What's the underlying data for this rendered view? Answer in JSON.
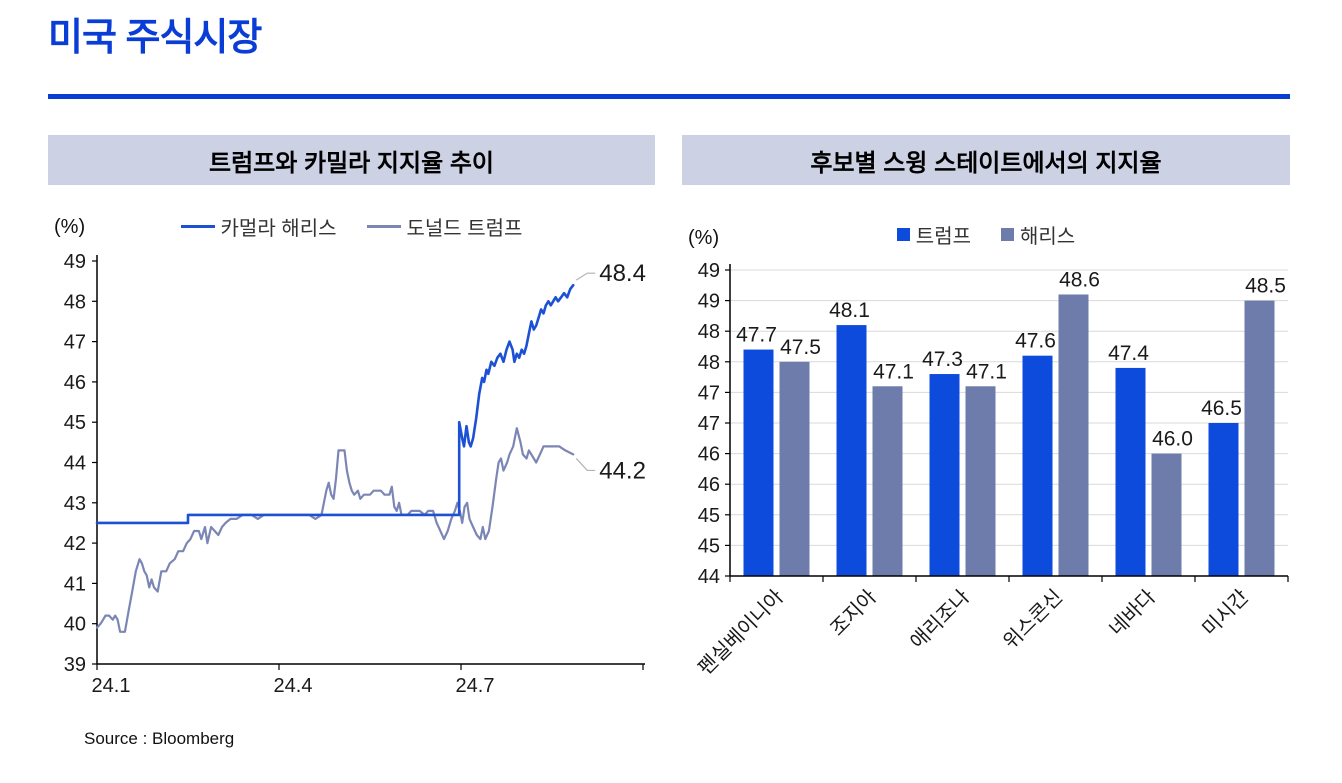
{
  "page": {
    "title": "미국 주식시장",
    "source": "Source : Bloomberg"
  },
  "colors": {
    "accent": "#0a3dd6",
    "header_bg": "#ccd1e4",
    "grid": "#d9d9d9",
    "axis": "#000000",
    "leader": "#b3b3b3",
    "label_text": "#1a1a1a"
  },
  "left_panel": {
    "header": "트럼프와 카밀라 지지율 추이",
    "unit_label": "(%)"
  },
  "right_panel": {
    "header": "후보별 스윙 스테이트에서의 지지율",
    "unit_label": "(%)"
  },
  "chart_data": [
    {
      "type": "line",
      "title": "트럼프와 카밀라 지지율 추이",
      "ylabel": "(%)",
      "ylim": [
        39,
        49
      ],
      "ytick_step": 1,
      "xticks": [
        "24.1",
        "24.4",
        "24.7"
      ],
      "x_divisions": 9,
      "grid": false,
      "legend_position": "top",
      "series": [
        {
          "name": "도널드 트럼프",
          "color": "#7b86b5",
          "end_label": "44.2",
          "points": [
            [
              0,
              39.9
            ],
            [
              0.06,
              40.0
            ],
            [
              0.1,
              40.1
            ],
            [
              0.14,
              40.2
            ],
            [
              0.2,
              40.2
            ],
            [
              0.26,
              40.1
            ],
            [
              0.3,
              40.2
            ],
            [
              0.34,
              40.1
            ],
            [
              0.38,
              39.8
            ],
            [
              0.46,
              39.8
            ],
            [
              0.52,
              40.3
            ],
            [
              0.58,
              40.8
            ],
            [
              0.64,
              41.3
            ],
            [
              0.7,
              41.6
            ],
            [
              0.74,
              41.5
            ],
            [
              0.78,
              41.3
            ],
            [
              0.82,
              41.2
            ],
            [
              0.86,
              40.9
            ],
            [
              0.9,
              41.1
            ],
            [
              0.94,
              40.9
            ],
            [
              1.0,
              40.8
            ],
            [
              1.06,
              41.3
            ],
            [
              1.14,
              41.3
            ],
            [
              1.2,
              41.5
            ],
            [
              1.28,
              41.6
            ],
            [
              1.34,
              41.8
            ],
            [
              1.42,
              41.8
            ],
            [
              1.48,
              42.0
            ],
            [
              1.54,
              42.1
            ],
            [
              1.6,
              42.3
            ],
            [
              1.68,
              42.3
            ],
            [
              1.72,
              42.1
            ],
            [
              1.78,
              42.4
            ],
            [
              1.82,
              42.0
            ],
            [
              1.88,
              42.4
            ],
            [
              1.94,
              42.3
            ],
            [
              2.0,
              42.2
            ],
            [
              2.06,
              42.4
            ],
            [
              2.12,
              42.5
            ],
            [
              2.2,
              42.6
            ],
            [
              2.3,
              42.6
            ],
            [
              2.4,
              42.7
            ],
            [
              2.55,
              42.7
            ],
            [
              2.65,
              42.6
            ],
            [
              2.75,
              42.7
            ],
            [
              3.5,
              42.7
            ],
            [
              3.6,
              42.6
            ],
            [
              3.7,
              42.7
            ],
            [
              3.78,
              43.3
            ],
            [
              3.82,
              43.5
            ],
            [
              3.86,
              43.2
            ],
            [
              3.9,
              43.1
            ],
            [
              3.94,
              43.6
            ],
            [
              3.98,
              44.3
            ],
            [
              4.08,
              44.3
            ],
            [
              4.12,
              43.8
            ],
            [
              4.16,
              43.5
            ],
            [
              4.2,
              43.3
            ],
            [
              4.24,
              43.2
            ],
            [
              4.3,
              43.3
            ],
            [
              4.34,
              43.1
            ],
            [
              4.4,
              43.2
            ],
            [
              4.5,
              43.2
            ],
            [
              4.56,
              43.3
            ],
            [
              4.68,
              43.3
            ],
            [
              4.74,
              43.2
            ],
            [
              4.82,
              43.2
            ],
            [
              4.86,
              43.4
            ],
            [
              4.9,
              42.9
            ],
            [
              4.94,
              42.8
            ],
            [
              4.98,
              43.0
            ],
            [
              5.02,
              42.7
            ],
            [
              5.12,
              42.7
            ],
            [
              5.18,
              42.8
            ],
            [
              5.32,
              42.8
            ],
            [
              5.4,
              42.7
            ],
            [
              5.46,
              42.8
            ],
            [
              5.54,
              42.8
            ],
            [
              5.6,
              42.5
            ],
            [
              5.66,
              42.3
            ],
            [
              5.72,
              42.1
            ],
            [
              5.78,
              42.3
            ],
            [
              5.84,
              42.6
            ],
            [
              5.9,
              42.8
            ],
            [
              5.94,
              43.0
            ],
            [
              5.98,
              42.8
            ],
            [
              6.02,
              42.5
            ],
            [
              6.06,
              42.9
            ],
            [
              6.1,
              43.0
            ],
            [
              6.14,
              42.6
            ],
            [
              6.2,
              42.4
            ],
            [
              6.26,
              42.2
            ],
            [
              6.32,
              42.1
            ],
            [
              6.36,
              42.4
            ],
            [
              6.4,
              42.1
            ],
            [
              6.46,
              42.3
            ],
            [
              6.52,
              42.9
            ],
            [
              6.58,
              43.6
            ],
            [
              6.62,
              44.0
            ],
            [
              6.66,
              44.1
            ],
            [
              6.7,
              43.8
            ],
            [
              6.76,
              44.0
            ],
            [
              6.8,
              44.2
            ],
            [
              6.86,
              44.4
            ],
            [
              6.92,
              44.85
            ],
            [
              6.98,
              44.5
            ],
            [
              7.02,
              44.2
            ],
            [
              7.08,
              44.1
            ],
            [
              7.12,
              44.3
            ],
            [
              7.18,
              44.15
            ],
            [
              7.24,
              44.0
            ],
            [
              7.3,
              44.2
            ],
            [
              7.36,
              44.4
            ],
            [
              7.62,
              44.4
            ],
            [
              7.72,
              44.3
            ],
            [
              7.85,
              44.2
            ]
          ]
        },
        {
          "name": "카멀라 해리스",
          "color": "#1d51d4",
          "end_label": "48.4",
          "points": [
            [
              0,
              42.5
            ],
            [
              1.5,
              42.5
            ],
            [
              1.5,
              42.7
            ],
            [
              5.97,
              42.7
            ],
            [
              5.97,
              45.0
            ],
            [
              6.02,
              44.6
            ],
            [
              6.05,
              44.4
            ],
            [
              6.09,
              44.9
            ],
            [
              6.13,
              44.5
            ],
            [
              6.16,
              44.4
            ],
            [
              6.2,
              44.6
            ],
            [
              6.25,
              45.1
            ],
            [
              6.3,
              45.7
            ],
            [
              6.35,
              46.1
            ],
            [
              6.38,
              46.0
            ],
            [
              6.42,
              46.3
            ],
            [
              6.45,
              46.2
            ],
            [
              6.5,
              46.5
            ],
            [
              6.55,
              46.4
            ],
            [
              6.6,
              46.6
            ],
            [
              6.65,
              46.7
            ],
            [
              6.7,
              46.5
            ],
            [
              6.75,
              46.8
            ],
            [
              6.8,
              47.0
            ],
            [
              6.85,
              46.8
            ],
            [
              6.88,
              46.5
            ],
            [
              6.92,
              46.7
            ],
            [
              6.96,
              46.6
            ],
            [
              7.0,
              46.8
            ],
            [
              7.04,
              46.7
            ],
            [
              7.08,
              46.9
            ],
            [
              7.12,
              47.2
            ],
            [
              7.16,
              47.5
            ],
            [
              7.2,
              47.3
            ],
            [
              7.24,
              47.4
            ],
            [
              7.28,
              47.6
            ],
            [
              7.32,
              47.8
            ],
            [
              7.36,
              47.7
            ],
            [
              7.4,
              47.9
            ],
            [
              7.44,
              48.0
            ],
            [
              7.48,
              47.9
            ],
            [
              7.52,
              48.0
            ],
            [
              7.56,
              48.1
            ],
            [
              7.6,
              48.0
            ],
            [
              7.65,
              48.1
            ],
            [
              7.7,
              48.2
            ],
            [
              7.75,
              48.1
            ],
            [
              7.8,
              48.3
            ],
            [
              7.85,
              48.4
            ]
          ]
        }
      ],
      "legend_order": [
        "카멀라 해리스",
        "도널드 트럼프"
      ]
    },
    {
      "type": "bar",
      "title": "후보별 스윙 스테이트에서의 지지율",
      "ylabel": "(%)",
      "ylim": [
        44,
        49
      ],
      "ytick_step": 0.5,
      "grid": true,
      "legend_position": "top",
      "categories": [
        "펜실베이니아",
        "조지아",
        "애리조나",
        "위스콘신",
        "네바다",
        "미시간"
      ],
      "series": [
        {
          "name": "트럼프",
          "color": "#0d4bdc",
          "values": [
            47.7,
            48.1,
            47.3,
            47.6,
            47.4,
            46.5
          ]
        },
        {
          "name": "해리스",
          "color": "#6e7cab",
          "values": [
            47.5,
            47.1,
            47.1,
            48.6,
            46.0,
            48.5
          ]
        }
      ]
    }
  ]
}
